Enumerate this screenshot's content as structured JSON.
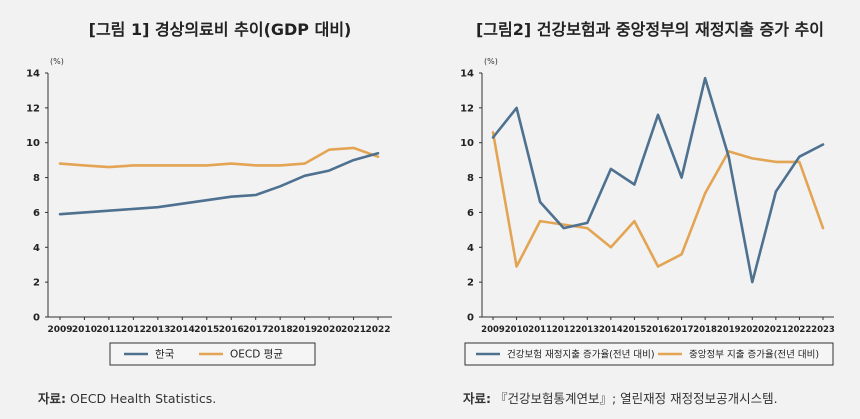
{
  "figures": [
    {
      "title": "[그림 1] 경상의료비 추이(GDP 대비)",
      "unit": "(%)",
      "source_label": "자료:",
      "source_text": "OECD Health Statistics."
    },
    {
      "title": "[그림2] 건강보험과 중앙정부의 재정지출 증가 추이",
      "unit": "(%)",
      "source_label": "자료:",
      "source_text": "『건강보험통계연보』; 열린재정 재정정보공개시스템."
    }
  ],
  "chart_data": [
    {
      "type": "line",
      "title": "[그림 1] 경상의료비 추이(GDP 대비)",
      "ylabel": "(%)",
      "ylim": [
        0,
        14
      ],
      "yticks": [
        0,
        2,
        4,
        6,
        8,
        10,
        12,
        14
      ],
      "x": [
        "2009",
        "2010",
        "2011",
        "2012",
        "2013",
        "2014",
        "2015",
        "2016",
        "2017",
        "2018",
        "2019",
        "2020",
        "2021",
        "2022"
      ],
      "grid": "horizontal",
      "legend": "bottom",
      "series": [
        {
          "name": "한국",
          "color": "#4e7190",
          "values": [
            5.9,
            6.0,
            6.1,
            6.2,
            6.3,
            6.5,
            6.7,
            6.9,
            7.0,
            7.5,
            8.1,
            8.4,
            9.0,
            9.4
          ]
        },
        {
          "name": "OECD 평균",
          "color": "#e3a553",
          "values": [
            8.8,
            8.7,
            8.6,
            8.7,
            8.7,
            8.7,
            8.7,
            8.8,
            8.7,
            8.7,
            8.8,
            9.6,
            9.7,
            9.2
          ]
        }
      ]
    },
    {
      "type": "line",
      "title": "[그림2] 건강보험과 중앙정부의 재정지출 증가 추이",
      "ylabel": "(%)",
      "ylim": [
        0,
        14
      ],
      "yticks": [
        0,
        2,
        4,
        6,
        8,
        10,
        12,
        14
      ],
      "x": [
        "2009",
        "2010",
        "2011",
        "2012",
        "2013",
        "2014",
        "2015",
        "2016",
        "2017",
        "2018",
        "2019",
        "2020",
        "2021",
        "2022",
        "2023"
      ],
      "grid": "horizontal",
      "legend": "bottom",
      "series": [
        {
          "name": "건강보험 재정지출 증가율(전년 대비)",
          "color": "#4e7190",
          "values": [
            10.3,
            12.0,
            6.6,
            5.1,
            5.4,
            8.5,
            7.6,
            11.6,
            8.0,
            13.7,
            9.2,
            2.0,
            7.2,
            9.2,
            9.9
          ]
        },
        {
          "name": "중앙정부 지출 증가율(전년 대비)",
          "color": "#e3a553",
          "values": [
            10.6,
            2.9,
            5.5,
            5.3,
            5.1,
            4.0,
            5.5,
            2.9,
            3.6,
            7.1,
            9.5,
            9.1,
            8.9,
            8.9,
            5.1
          ]
        }
      ]
    }
  ]
}
